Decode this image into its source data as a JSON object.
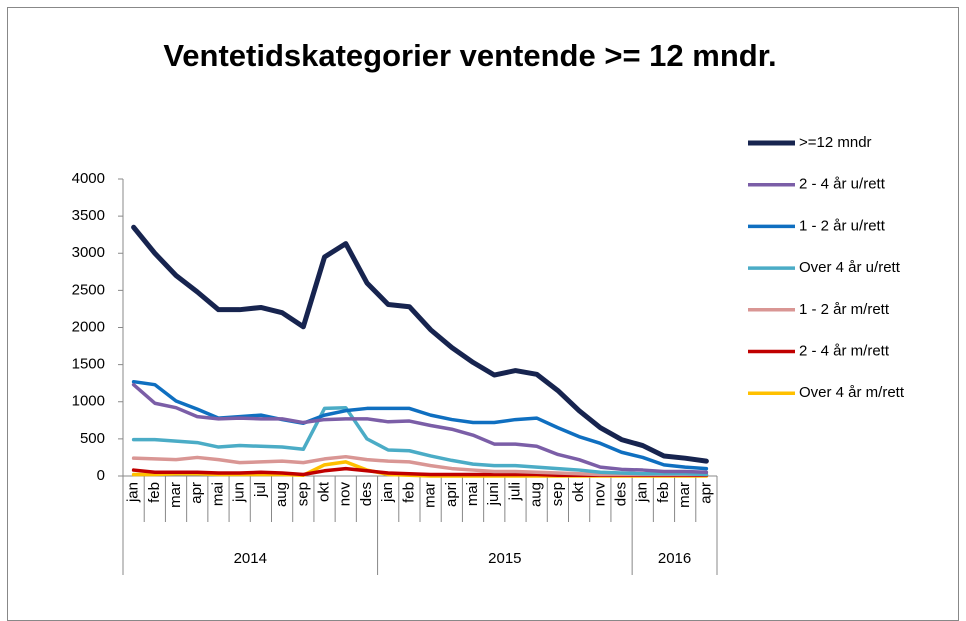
{
  "chart_data": {
    "type": "line",
    "title": "Ventetidskategorier ventende >= 12 mndr.",
    "categories": [
      "jan",
      "feb",
      "mar",
      "apr",
      "mai",
      "jun",
      "jul",
      "aug",
      "sep",
      "okt",
      "nov",
      "des",
      "jan",
      "feb",
      "mar",
      "apri",
      "mai",
      "juni",
      "juli",
      "aug",
      "sep",
      "okt",
      "nov",
      "des",
      "jan",
      "feb",
      "mar",
      "apr"
    ],
    "years": [
      "2014",
      "2015",
      "2016"
    ],
    "ylim": [
      0,
      4000
    ],
    "yticks": [
      0,
      500,
      1000,
      1500,
      2000,
      2500,
      3000,
      3500,
      4000
    ],
    "legend": "right",
    "series": [
      {
        "name": ">=12 mndr",
        "color": "#17244f",
        "values": [
          3350,
          3000,
          2700,
          2480,
          2240,
          2240,
          2270,
          2200,
          2010,
          2950,
          3130,
          2600,
          2310,
          2280,
          1970,
          1730,
          1530,
          1360,
          1420,
          1370,
          1150,
          880,
          650,
          490,
          410,
          270,
          240,
          200
        ]
      },
      {
        "name": "2 - 4 år u/rett",
        "color": "#7b5ea7",
        "values": [
          1230,
          980,
          920,
          800,
          770,
          780,
          770,
          770,
          720,
          760,
          770,
          770,
          730,
          740,
          680,
          630,
          550,
          430,
          430,
          400,
          290,
          220,
          120,
          90,
          80,
          60,
          60,
          50
        ]
      },
      {
        "name": "1 - 2 år u/rett",
        "color": "#0f6fc0",
        "values": [
          1270,
          1230,
          1010,
          900,
          780,
          800,
          820,
          760,
          710,
          820,
          880,
          910,
          910,
          910,
          820,
          760,
          720,
          720,
          760,
          780,
          650,
          530,
          440,
          320,
          250,
          150,
          120,
          100
        ]
      },
      {
        "name": "Over 4 år u/rett",
        "color": "#4bacc6",
        "values": [
          490,
          490,
          470,
          450,
          390,
          410,
          400,
          390,
          360,
          910,
          920,
          500,
          350,
          340,
          270,
          210,
          160,
          140,
          140,
          120,
          100,
          80,
          50,
          40,
          30,
          30,
          30,
          20
        ]
      },
      {
        "name": "1 - 2 år m/rett",
        "color": "#d99694",
        "values": [
          240,
          230,
          220,
          250,
          220,
          180,
          190,
          200,
          180,
          230,
          260,
          220,
          200,
          190,
          140,
          100,
          80,
          60,
          60,
          50,
          40,
          30,
          20,
          20,
          20,
          20,
          20,
          20
        ]
      },
      {
        "name": "2 - 4 år m/rett",
        "color": "#c00000",
        "values": [
          80,
          50,
          50,
          50,
          40,
          40,
          50,
          40,
          20,
          70,
          100,
          70,
          40,
          30,
          20,
          20,
          20,
          20,
          20,
          20,
          10,
          10,
          10,
          10,
          10,
          10,
          10,
          10
        ]
      },
      {
        "name": "Over 4 år m/rett",
        "color": "#ffc000",
        "values": [
          20,
          20,
          30,
          30,
          20,
          20,
          20,
          20,
          10,
          150,
          190,
          80,
          20,
          10,
          0,
          0,
          0,
          0,
          0,
          0,
          0,
          0,
          0,
          0,
          0,
          0,
          0,
          0
        ]
      }
    ]
  }
}
